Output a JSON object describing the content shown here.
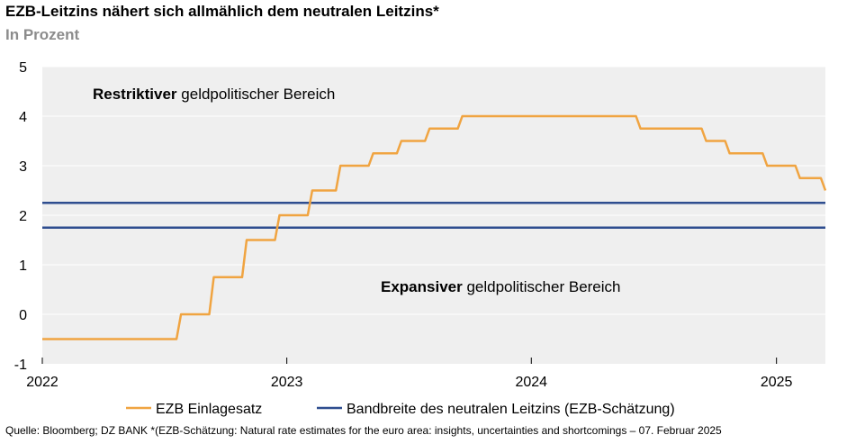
{
  "header": {
    "title": "EZB-Leitzins nähert sich allmählich dem neutralen Leitzins*",
    "subtitle": "In Prozent"
  },
  "footer": {
    "source": "Quelle: Bloomberg; DZ BANK *(EZB-Schätzung: Natural rate estimates for the euro area: insights, uncertainties and shortcomings – 07. Februar 2025"
  },
  "colors": {
    "plot_background": "#efefef",
    "grid": "#ffffff",
    "deposit_rate": "#f0a441",
    "neutral_band": "#2e4d8f"
  },
  "chart_data": {
    "type": "line",
    "title": "EZB-Leitzins nähert sich allmählich dem neutralen Leitzins*",
    "subtitle": "In Prozent",
    "ylim": [
      -1,
      5
    ],
    "yticks": [
      -1,
      0,
      1,
      2,
      3,
      4,
      5
    ],
    "xlim": [
      "2022-01-01",
      "2025-03-15"
    ],
    "xticks": [
      {
        "date": "2022-01-01",
        "label": "2022"
      },
      {
        "date": "2023-01-01",
        "label": "2023"
      },
      {
        "date": "2024-01-01",
        "label": "2024"
      },
      {
        "date": "2025-01-01",
        "label": "2025"
      }
    ],
    "grid": "horizontal",
    "legend_position": "bottom",
    "series": [
      {
        "name": "EZB Einlagesatz",
        "type": "step",
        "points": [
          {
            "date": "2022-01-01",
            "value": -0.5
          },
          {
            "date": "2022-07-27",
            "value": 0.0
          },
          {
            "date": "2022-09-14",
            "value": 0.75
          },
          {
            "date": "2022-11-02",
            "value": 1.5
          },
          {
            "date": "2022-12-21",
            "value": 2.0
          },
          {
            "date": "2023-02-08",
            "value": 2.5
          },
          {
            "date": "2023-03-22",
            "value": 3.0
          },
          {
            "date": "2023-05-10",
            "value": 3.25
          },
          {
            "date": "2023-06-21",
            "value": 3.5
          },
          {
            "date": "2023-08-02",
            "value": 3.75
          },
          {
            "date": "2023-09-20",
            "value": 4.0
          },
          {
            "date": "2024-06-12",
            "value": 3.75
          },
          {
            "date": "2024-09-18",
            "value": 3.5
          },
          {
            "date": "2024-10-23",
            "value": 3.25
          },
          {
            "date": "2024-12-18",
            "value": 3.0
          },
          {
            "date": "2025-02-05",
            "value": 2.75
          },
          {
            "date": "2025-03-15",
            "value": 2.5
          }
        ]
      },
      {
        "name": "Bandbreite des neutralen Leitzins (EZB-Schätzung)",
        "type": "hline",
        "values": [
          1.75,
          2.25
        ]
      }
    ],
    "annotations": [
      {
        "bold": "Restriktiver",
        "text": " geldpolitischer Bereich"
      },
      {
        "bold": "Expansiver",
        "text": " geldpolitischer Bereich"
      }
    ]
  }
}
